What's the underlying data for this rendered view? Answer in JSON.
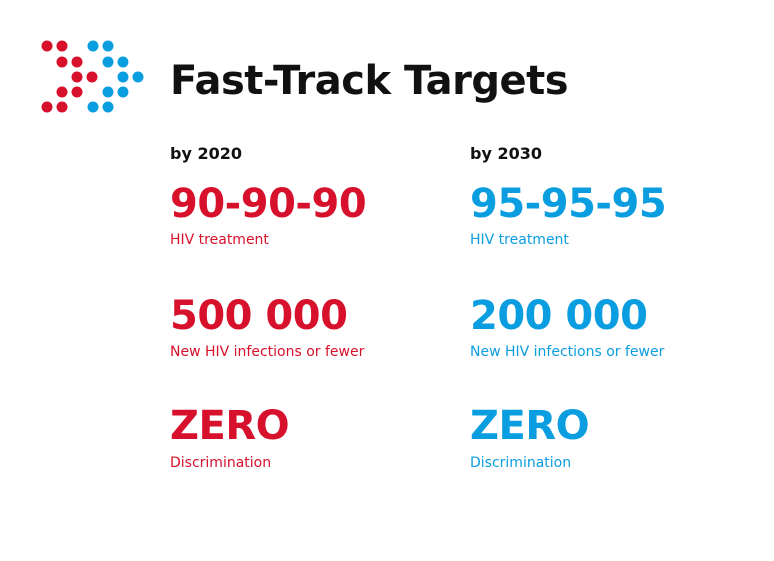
{
  "header": {
    "title": "Fast-Track Targets"
  },
  "columns": [
    {
      "heading": "by 2020",
      "color": "#d7102b",
      "targets": [
        {
          "value": "90-90-90",
          "label": "HIV treatment"
        },
        {
          "value": "500 000",
          "label": "New HIV infections or fewer"
        },
        {
          "value": "ZERO",
          "label": "Discrimination"
        }
      ]
    },
    {
      "heading": "by 2030",
      "color": "#0a9de0",
      "targets": [
        {
          "value": "95-95-95",
          "label": "HIV treatment"
        },
        {
          "value": "200 000",
          "label": "New HIV infections or fewer"
        },
        {
          "value": "ZERO",
          "label": "Discrimination"
        }
      ]
    }
  ]
}
